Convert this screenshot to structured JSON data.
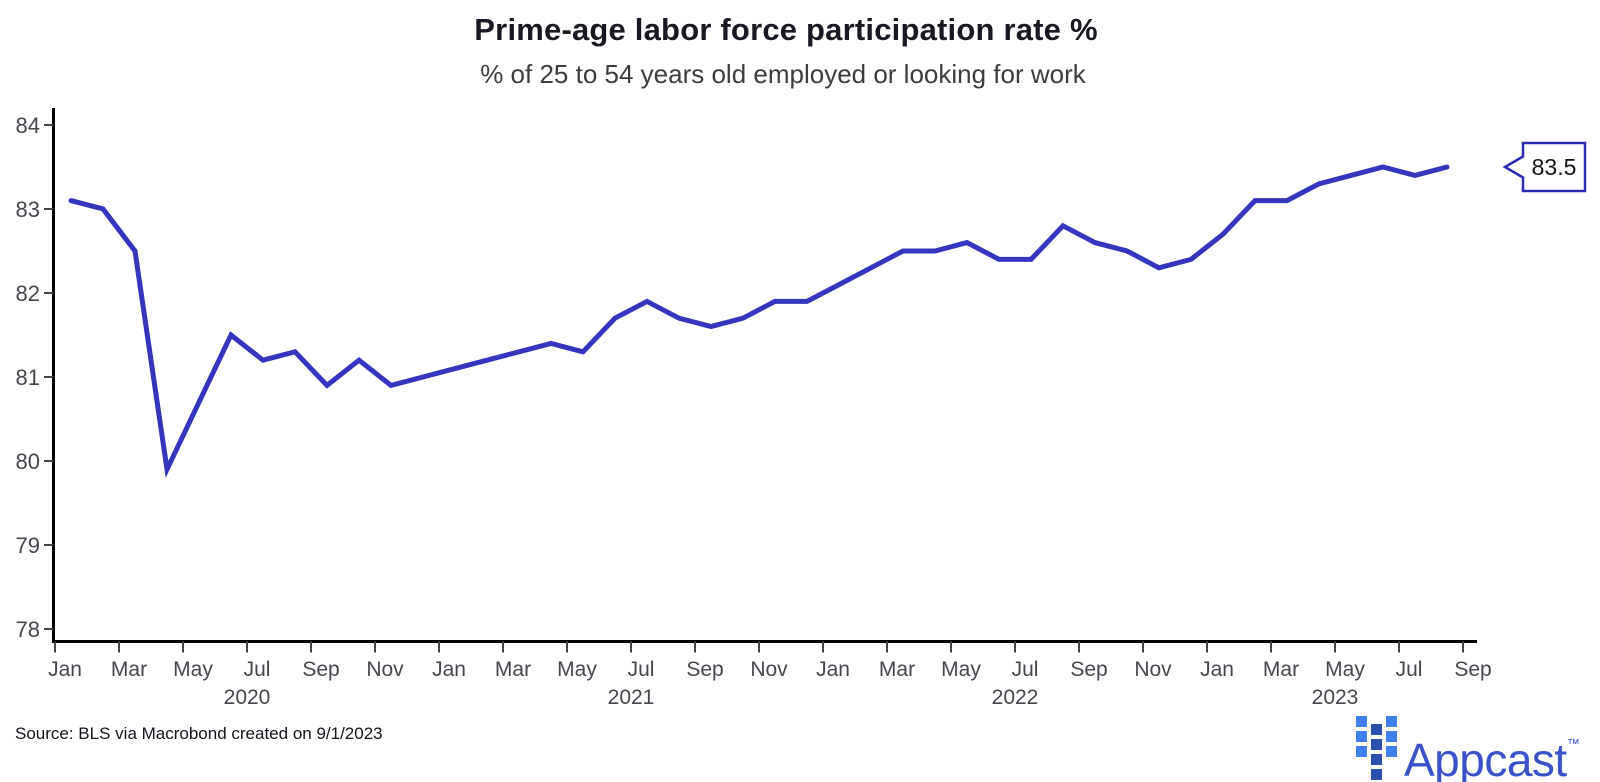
{
  "chart_data": {
    "type": "line",
    "title": "Prime-age labor force participation rate %",
    "subtitle": "% of 25 to 54 years old employed or looking for work",
    "xlabel": "",
    "ylabel": "",
    "ylim": [
      78,
      84
    ],
    "yticks": [
      78,
      79,
      80,
      81,
      82,
      83,
      84
    ],
    "grid": false,
    "legend": "none",
    "x_tick_labels": [
      "Jan",
      "Mar",
      "May",
      "Jul",
      "Sep",
      "Nov",
      "Jan",
      "Mar",
      "May",
      "Jul",
      "Sep",
      "Nov",
      "Jan",
      "Mar",
      "May",
      "Jul",
      "Sep",
      "Nov",
      "Jan",
      "Mar",
      "May",
      "Jul",
      "Sep"
    ],
    "year_labels": [
      "2020",
      "2021",
      "2022",
      "2023"
    ],
    "months": [
      "2020-01",
      "2020-02",
      "2020-03",
      "2020-04",
      "2020-05",
      "2020-06",
      "2020-07",
      "2020-08",
      "2020-09",
      "2020-10",
      "2020-11",
      "2020-12",
      "2021-01",
      "2021-02",
      "2021-03",
      "2021-04",
      "2021-05",
      "2021-06",
      "2021-07",
      "2021-08",
      "2021-09",
      "2021-10",
      "2021-11",
      "2021-12",
      "2022-01",
      "2022-02",
      "2022-03",
      "2022-04",
      "2022-05",
      "2022-06",
      "2022-07",
      "2022-08",
      "2022-09",
      "2022-10",
      "2022-11",
      "2022-12",
      "2023-01",
      "2023-02",
      "2023-03",
      "2023-04",
      "2023-05",
      "2023-06",
      "2023-07",
      "2023-08"
    ],
    "series": [
      {
        "name": "Prime-age labor force participation rate %",
        "color": "#3535bd",
        "values": [
          83.1,
          83.0,
          82.5,
          79.9,
          80.7,
          81.5,
          81.2,
          81.3,
          80.9,
          81.2,
          80.9,
          81.0,
          81.1,
          81.2,
          81.3,
          81.4,
          81.3,
          81.7,
          81.9,
          81.7,
          81.6,
          81.7,
          81.9,
          81.9,
          82.1,
          82.3,
          82.5,
          82.5,
          82.6,
          82.4,
          82.4,
          82.8,
          82.6,
          82.5,
          82.3,
          82.4,
          82.7,
          83.1,
          83.1,
          83.3,
          83.4,
          83.5,
          83.4,
          83.5
        ]
      }
    ],
    "annotation": {
      "label": "83.5"
    }
  },
  "footer": {
    "source": "Source: BLS via Macrobond created on 9/1/2023",
    "brand": "Appcast",
    "trademark": "™"
  },
  "icons": {
    "logo_mark": "appcast-grid-icon"
  },
  "colors": {
    "line": "#3535bd",
    "axis": "#000000",
    "tick": "#44444c",
    "tick_label": "#46464e",
    "callout_border": "#2a2ab2",
    "callout_text": "#141414",
    "brand_text": "#3b52c9",
    "logo_outer": "#4080ee",
    "logo_middle": "#2d4fae"
  }
}
